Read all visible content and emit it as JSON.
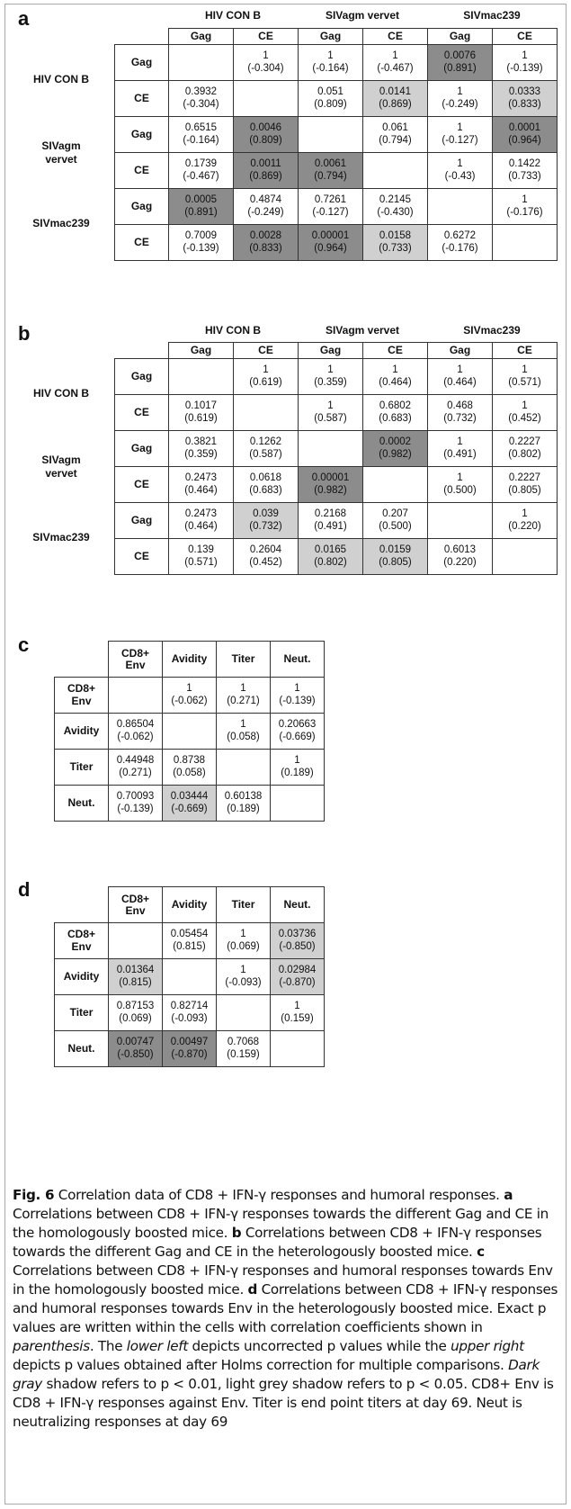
{
  "panels": {
    "a": {
      "letter": "a",
      "groups": [
        "HIV CON B",
        "SIVagm vervet",
        "SIVmac239"
      ],
      "cols": [
        "Gag",
        "CE",
        "Gag",
        "CE",
        "Gag",
        "CE"
      ],
      "row_groups": [
        "HIV CON B",
        "SIVagm\nvervet",
        "SIVmac239"
      ],
      "rows": [
        {
          "label": "Gag",
          "cells": [
            null,
            {
              "p": "1",
              "r": "(-0.304)"
            },
            {
              "p": "1",
              "r": "(-0.164)"
            },
            {
              "p": "1",
              "r": "(-0.467)"
            },
            {
              "p": "0.0076",
              "r": "(0.891)",
              "shade": "dark"
            },
            {
              "p": "1",
              "r": "(-0.139)"
            }
          ]
        },
        {
          "label": "CE",
          "cells": [
            {
              "p": "0.3932",
              "r": "(-0.304)"
            },
            null,
            {
              "p": "0.051",
              "r": "(0.809)"
            },
            {
              "p": "0.0141",
              "r": "(0.869)",
              "shade": "light"
            },
            {
              "p": "1",
              "r": "(-0.249)"
            },
            {
              "p": "0.0333",
              "r": "(0.833)",
              "shade": "light"
            }
          ]
        },
        {
          "label": "Gag",
          "cells": [
            {
              "p": "0.6515",
              "r": "(-0.164)"
            },
            {
              "p": "0.0046",
              "r": "(0.809)",
              "shade": "dark"
            },
            null,
            {
              "p": "0.061",
              "r": "(0.794)"
            },
            {
              "p": "1",
              "r": "(-0.127)"
            },
            {
              "p": "0.0001",
              "r": "(0.964)",
              "shade": "dark"
            }
          ]
        },
        {
          "label": "CE",
          "cells": [
            {
              "p": "0.1739",
              "r": "(-0.467)"
            },
            {
              "p": "0.0011",
              "r": "(0.869)",
              "shade": "dark"
            },
            {
              "p": "0.0061",
              "r": "(0.794)",
              "shade": "dark"
            },
            null,
            {
              "p": "1",
              "r": "(-0.43)"
            },
            {
              "p": "0.1422",
              "r": "(0.733)"
            }
          ]
        },
        {
          "label": "Gag",
          "cells": [
            {
              "p": "0.0005",
              "r": "(0.891)",
              "shade": "dark"
            },
            {
              "p": "0.4874",
              "r": "(-0.249)"
            },
            {
              "p": "0.7261",
              "r": "(-0.127)"
            },
            {
              "p": "0.2145",
              "r": "(-0.430)"
            },
            null,
            {
              "p": "1",
              "r": "(-0.176)"
            }
          ]
        },
        {
          "label": "CE",
          "cells": [
            {
              "p": "0.7009",
              "r": "(-0.139)"
            },
            {
              "p": "0.0028",
              "r": "(0.833)",
              "shade": "dark"
            },
            {
              "p": "0.00001",
              "r": "(0.964)",
              "shade": "dark"
            },
            {
              "p": "0.0158",
              "r": "(0.733)",
              "shade": "light"
            },
            {
              "p": "0.6272",
              "r": "(-0.176)"
            },
            null
          ]
        }
      ]
    },
    "b": {
      "letter": "b",
      "groups": [
        "HIV CON B",
        "SIVagm vervet",
        "SIVmac239"
      ],
      "cols": [
        "Gag",
        "CE",
        "Gag",
        "CE",
        "Gag",
        "CE"
      ],
      "row_groups": [
        "HIV CON B",
        "SIVagm\nvervet",
        "SIVmac239"
      ],
      "rows": [
        {
          "label": "Gag",
          "cells": [
            null,
            {
              "p": "1",
              "r": "(0.619)"
            },
            {
              "p": "1",
              "r": "(0.359)"
            },
            {
              "p": "1",
              "r": "(0.464)"
            },
            {
              "p": "1",
              "r": "(0.464)"
            },
            {
              "p": "1",
              "r": "(0.571)"
            }
          ]
        },
        {
          "label": "CE",
          "cells": [
            {
              "p": "0.1017",
              "r": "(0.619)"
            },
            null,
            {
              "p": "1",
              "r": "(0.587)"
            },
            {
              "p": "0.6802",
              "r": "(0.683)"
            },
            {
              "p": "0.468",
              "r": "(0.732)"
            },
            {
              "p": "1",
              "r": "(0.452)"
            }
          ]
        },
        {
          "label": "Gag",
          "cells": [
            {
              "p": "0.3821",
              "r": "(0.359)"
            },
            {
              "p": "0.1262",
              "r": "(0.587)"
            },
            null,
            {
              "p": "0.0002",
              "r": "(0.982)",
              "shade": "dark"
            },
            {
              "p": "1",
              "r": "(0.491)"
            },
            {
              "p": "0.2227",
              "r": "(0.802)"
            }
          ]
        },
        {
          "label": "CE",
          "cells": [
            {
              "p": "0.2473",
              "r": "(0.464)"
            },
            {
              "p": "0.0618",
              "r": "(0.683)"
            },
            {
              "p": "0.00001",
              "r": "(0.982)",
              "shade": "dark"
            },
            null,
            {
              "p": "1",
              "r": "(0.500)"
            },
            {
              "p": "0.2227",
              "r": "(0.805)"
            }
          ]
        },
        {
          "label": "Gag",
          "cells": [
            {
              "p": "0.2473",
              "r": "(0.464)"
            },
            {
              "p": "0.039",
              "r": "(0.732)",
              "shade": "light"
            },
            {
              "p": "0.2168",
              "r": "(0.491)"
            },
            {
              "p": "0.207",
              "r": "(0.500)"
            },
            null,
            {
              "p": "1",
              "r": "(0.220)"
            }
          ]
        },
        {
          "label": "CE",
          "cells": [
            {
              "p": "0.139",
              "r": "(0.571)"
            },
            {
              "p": "0.2604",
              "r": "(0.452)"
            },
            {
              "p": "0.0165",
              "r": "(0.802)",
              "shade": "light"
            },
            {
              "p": "0.0159",
              "r": "(0.805)",
              "shade": "light"
            },
            {
              "p": "0.6013",
              "r": "(0.220)"
            },
            null
          ]
        }
      ]
    },
    "c": {
      "letter": "c",
      "cols": [
        "CD8+\nEnv",
        "Avidity",
        "Titer",
        "Neut."
      ],
      "rows": [
        {
          "label": "CD8+\nEnv",
          "cells": [
            null,
            {
              "p": "1",
              "r": "(-0.062)"
            },
            {
              "p": "1",
              "r": "(0.271)"
            },
            {
              "p": "1",
              "r": "(-0.139)"
            }
          ]
        },
        {
          "label": "Avidity",
          "cells": [
            {
              "p": "0.86504",
              "r": "(-0.062)"
            },
            null,
            {
              "p": "1",
              "r": "(0.058)"
            },
            {
              "p": "0.20663",
              "r": "(-0.669)"
            }
          ]
        },
        {
          "label": "Titer",
          "cells": [
            {
              "p": "0.44948",
              "r": "(0.271)"
            },
            {
              "p": "0.8738",
              "r": "(0.058)"
            },
            null,
            {
              "p": "1",
              "r": "(0.189)"
            }
          ]
        },
        {
          "label": "Neut.",
          "cells": [
            {
              "p": "0.70093",
              "r": "(-0.139)"
            },
            {
              "p": "0.03444",
              "r": "(-0.669)",
              "shade": "light"
            },
            {
              "p": "0.60138",
              "r": "(0.189)"
            },
            null
          ]
        }
      ]
    },
    "d": {
      "letter": "d",
      "cols": [
        "CD8+\nEnv",
        "Avidity",
        "Titer",
        "Neut."
      ],
      "rows": [
        {
          "label": "CD8+\nEnv",
          "cells": [
            null,
            {
              "p": "0.05454",
              "r": "(0.815)"
            },
            {
              "p": "1",
              "r": "(0.069)"
            },
            {
              "p": "0.03736",
              "r": "(-0.850)",
              "shade": "light"
            }
          ]
        },
        {
          "label": "Avidity",
          "cells": [
            {
              "p": "0.01364",
              "r": "(0.815)",
              "shade": "light"
            },
            null,
            {
              "p": "1",
              "r": "(-0.093)"
            },
            {
              "p": "0.02984",
              "r": "(-0.870)",
              "shade": "light"
            }
          ]
        },
        {
          "label": "Titer",
          "cells": [
            {
              "p": "0.87153",
              "r": "(0.069)"
            },
            {
              "p": "0.82714",
              "r": "(-0.093)"
            },
            null,
            {
              "p": "1",
              "r": "(0.159)"
            }
          ]
        },
        {
          "label": "Neut.",
          "cells": [
            {
              "p": "0.00747",
              "r": "(-0.850)",
              "shade": "dark"
            },
            {
              "p": "0.00497",
              "r": "(-0.870)",
              "shade": "dark"
            },
            {
              "p": "0.7068",
              "r": "(0.159)"
            },
            null
          ]
        }
      ]
    }
  },
  "shade_colors": {
    "dark": "#8c8c8c",
    "light": "#d0d0d0"
  },
  "caption": {
    "fig_label": "Fig. 6",
    "t1": " Correlation data of CD8 + IFN-γ responses and humoral responses. ",
    "la": "a",
    "t2": " Correlations between CD8 + IFN-γ responses towards the different Gag and CE in the homologously boosted mice. ",
    "lb": "b",
    "t3": " Correlations between CD8 + IFN-γ responses towards the different Gag and CE in the heterologously boosted mice. ",
    "lc": "c",
    "t4": " Correlations between CD8 + IFN-γ responses and humoral responses towards Env in the homologously boosted mice. ",
    "ld": "d",
    "t5": " Correlations between CD8 + IFN-γ responses and humoral responses towards Env in the heterologously boosted mice. Exact p values are written within the cells with correlation coefficients shown in ",
    "i1": "parenthesis",
    "t6": ". The ",
    "i2": "lower left",
    "t7": " depicts uncorrected p values while the ",
    "i3": "upper right",
    "t8": " depicts p values obtained after Holms correction for multiple comparisons. ",
    "i4": "Dark gray",
    "t9": " shadow refers to p < 0.01, light grey shadow refers to p < 0.05. CD8+ Env is CD8 + IFN-γ responses against Env. Titer is end point titers at day 69. Neut is neutralizing responses at day 69"
  }
}
